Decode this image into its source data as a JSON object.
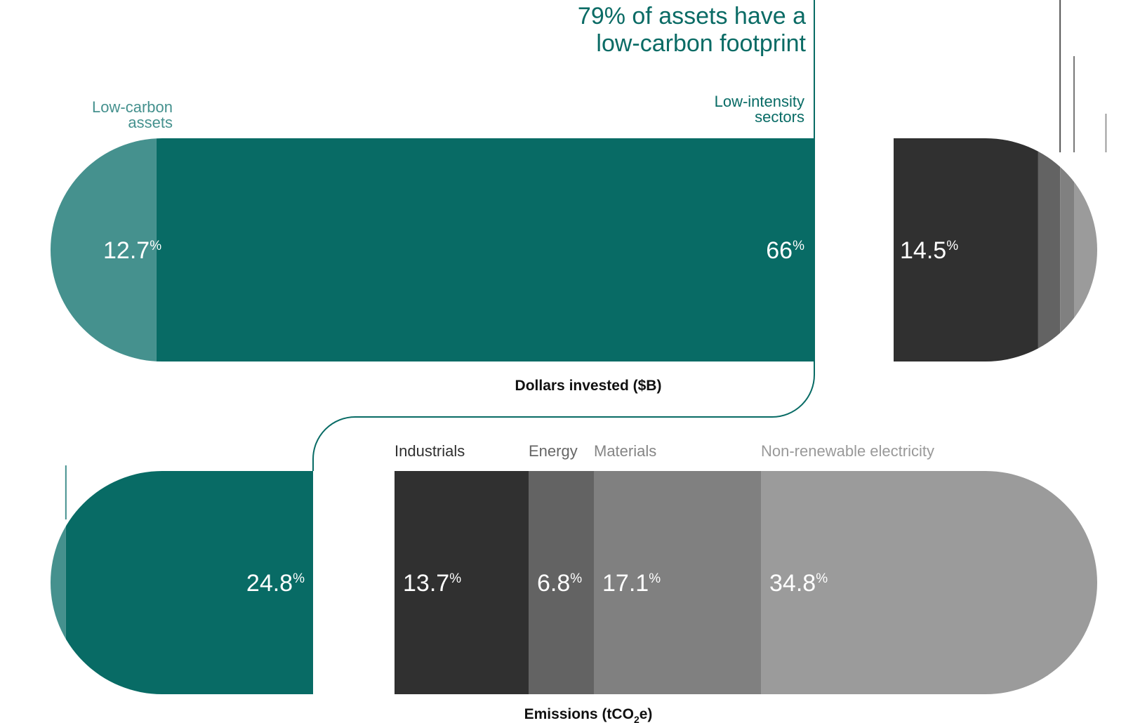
{
  "headline": {
    "line1": "79% of assets have a",
    "line2": "low-carbon footprint"
  },
  "colors": {
    "low_carbon": "#45918e",
    "low_intensity": "#086b65",
    "industrials": "#303030",
    "energy": "#636363",
    "materials": "#808080",
    "non_renewable": "#9b9b9b",
    "connector": "#086b65"
  },
  "chart_data": [
    {
      "type": "bar",
      "stacked": true,
      "orientation": "horizontal",
      "title": "Dollars invested ($B)",
      "percent_symbol": "%",
      "categories": [
        "Low-carbon assets",
        "Low-intensity sectors",
        "Industrials",
        "Energy",
        "Materials",
        "Non-renewable electricity"
      ],
      "series": [
        {
          "name": "Low-carbon assets",
          "label": "Low-carbon assets",
          "value": 12.7,
          "display": "12.7",
          "color": "#45918e"
        },
        {
          "name": "Low-intensity sectors",
          "label": "Low-intensity sectors",
          "value": 66,
          "display": "66",
          "color": "#086b65"
        },
        {
          "name": "Industrials",
          "value": 14.5,
          "display": "14.5",
          "color": "#303030"
        },
        {
          "name": "Energy",
          "value": 2.2,
          "display": "2.2",
          "color": "#636363"
        },
        {
          "name": "Materials",
          "value": 1.4,
          "display": "1.4",
          "color": "#808080"
        },
        {
          "name": "Non-renewable electricity",
          "value": 3.2,
          "display": "3.2",
          "color": "#9b9b9b"
        }
      ],
      "unit": "%",
      "note": "79% of assets have a low-carbon footprint"
    },
    {
      "type": "bar",
      "stacked": true,
      "orientation": "horizontal",
      "title": "Emissions (tCO2e)",
      "title_parts": {
        "before": "Emissions (tCO",
        "sub": "2",
        "after": "e)"
      },
      "percent_symbol": "%",
      "categories": [
        "Low-carbon assets",
        "Low-intensity sectors",
        "Industrials",
        "Energy",
        "Materials",
        "Non-renewable electricity"
      ],
      "series": [
        {
          "name": "Low-carbon assets",
          "value": 2.8,
          "display": "2.8",
          "color": "#45918e"
        },
        {
          "name": "Low-intensity sectors",
          "value": 24.8,
          "display": "24.8",
          "color": "#086b65"
        },
        {
          "name": "Industrials",
          "label": "Industrials",
          "value": 13.7,
          "display": "13.7",
          "color": "#303030"
        },
        {
          "name": "Energy",
          "label": "Energy",
          "value": 6.8,
          "display": "6.8",
          "color": "#636363"
        },
        {
          "name": "Materials",
          "label": "Materials",
          "value": 17.1,
          "display": "17.1",
          "color": "#808080"
        },
        {
          "name": "Non-renewable electricity",
          "label": "Non-renewable electricity",
          "value": 34.8,
          "display": "34.8",
          "color": "#9b9b9b"
        }
      ],
      "unit": "%"
    }
  ]
}
